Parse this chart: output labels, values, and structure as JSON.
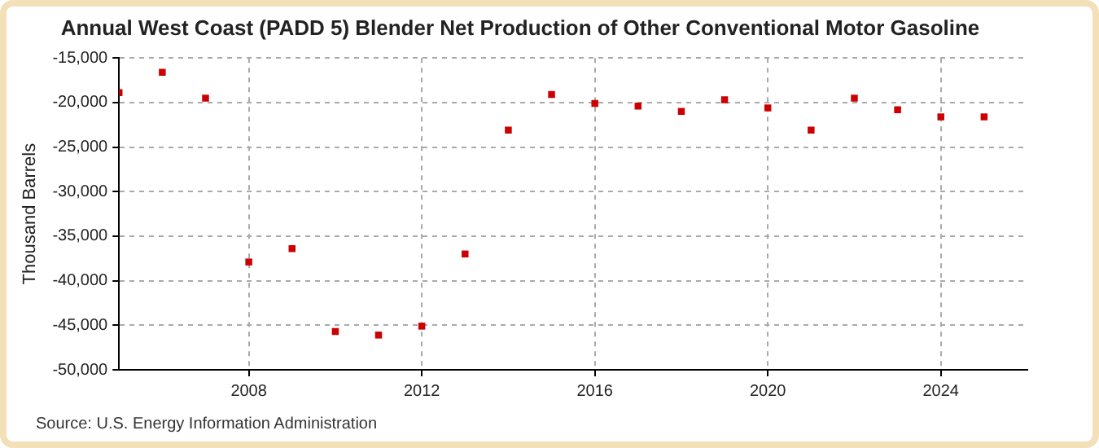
{
  "chart_data": {
    "type": "scatter",
    "title": "Annual West Coast (PADD 5) Blender Net Production of Other Conventional Motor Gasoline",
    "ylabel": "Thousand Barrels",
    "annotations": [
      "Source: U.S. Energy Information Administration"
    ],
    "x": [
      2005,
      2006,
      2007,
      2008,
      2009,
      2010,
      2011,
      2012,
      2013,
      2014,
      2015,
      2016,
      2017,
      2018,
      2019,
      2020,
      2021,
      2022,
      2023,
      2024,
      2025
    ],
    "series": [
      {
        "color": "#cc0000",
        "values": [
          -18900,
          -16600,
          -19500,
          -37900,
          -36400,
          -45700,
          -46100,
          -45100,
          -37000,
          -23100,
          -19100,
          -20100,
          -20400,
          -21000,
          -19700,
          -20600,
          -23100,
          -19500,
          -20800,
          -21600,
          -21600
        ]
      }
    ],
    "xlim": [
      2005,
      2026
    ],
    "xticks": [
      {
        "value": 2008,
        "label": "2008"
      },
      {
        "value": 2012,
        "label": "2012"
      },
      {
        "value": 2016,
        "label": "2016"
      },
      {
        "value": 2020,
        "label": "2020"
      },
      {
        "value": 2024,
        "label": "2024"
      }
    ],
    "ylim": [
      -50000,
      -15000
    ],
    "yticks": [
      {
        "value": -50000,
        "label": "-50,000"
      },
      {
        "value": -45000,
        "label": "-45,000"
      },
      {
        "value": -40000,
        "label": "-40,000"
      },
      {
        "value": -35000,
        "label": "-35,000"
      },
      {
        "value": -30000,
        "label": "-30,000"
      },
      {
        "value": -25000,
        "label": "-25,000"
      },
      {
        "value": -20000,
        "label": "-20,000"
      },
      {
        "value": -15000,
        "label": "-15,000"
      }
    ],
    "grid": true,
    "marker": "square",
    "legend": false
  }
}
